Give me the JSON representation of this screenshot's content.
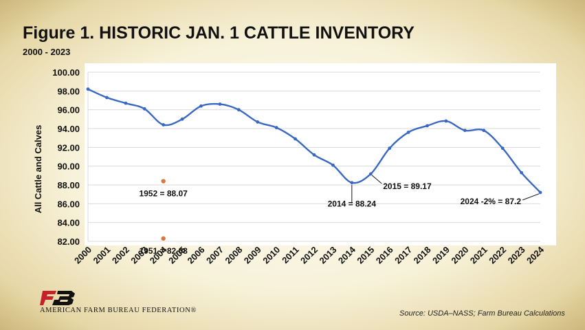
{
  "figure": {
    "title": "Figure  1. HISTORIC JAN. 1 CATTLE INVENTORY",
    "subtitle": "2000 - 2023",
    "source": "Source: USDA–NASS; Farm Bureau Calculations",
    "logo_text": "AMERICAN FARM BUREAU FEDERATION®",
    "logo_icon": "fb-logo-icon"
  },
  "colors": {
    "line": "#3a68c0",
    "marker": "#3a68c0",
    "historic_marker": "#d9773a",
    "logo_red": "#c8202b"
  },
  "chart_data": {
    "type": "line",
    "title": "Figure  1. HISTORIC JAN. 1 CATTLE INVENTORY",
    "subtitle": "2000 - 2023",
    "xlabel": "",
    "ylabel": "All Cattle and Calves",
    "categories": [
      "2000",
      "2001",
      "2002",
      "2003",
      "2004",
      "2005",
      "2006",
      "2007",
      "2008",
      "2009",
      "2010",
      "2011",
      "2012",
      "2013",
      "2014",
      "2015",
      "2016",
      "2017",
      "2018",
      "2019",
      "2020",
      "2021",
      "2022",
      "2023",
      "2024"
    ],
    "series": [
      {
        "values": [
          98.2,
          97.3,
          96.7,
          96.1,
          94.4,
          95.0,
          96.4,
          96.6,
          96.0,
          94.7,
          94.1,
          92.9,
          91.2,
          90.1,
          88.24,
          89.17,
          91.9,
          93.6,
          94.3,
          94.8,
          93.8,
          93.8,
          91.9,
          89.3,
          87.2
        ]
      }
    ],
    "historic_points": [
      {
        "x": "2004",
        "y": 88.4,
        "label": "1952 = 88.07"
      },
      {
        "x": "2004",
        "y": 82.3,
        "label": "1951 = 82.08"
      }
    ],
    "annotations": [
      {
        "x": "2014",
        "y": 88.24,
        "label": "2014 = 88.24"
      },
      {
        "x": "2015",
        "y": 89.17,
        "label": "2015 = 89.17"
      },
      {
        "x": "2024",
        "y": 87.2,
        "label": "2024 -2% = 87.2"
      }
    ],
    "yticks": [
      "82.00",
      "84.00",
      "86.00",
      "88.00",
      "90.00",
      "92.00",
      "94.00",
      "96.00",
      "98.00",
      "100.00"
    ],
    "ylim": [
      82,
      100
    ],
    "grid": true,
    "legend": "none"
  }
}
